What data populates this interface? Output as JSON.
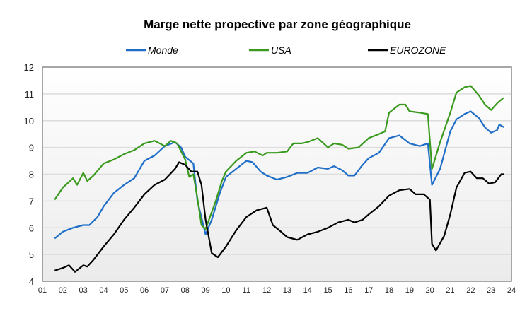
{
  "chart_data": {
    "type": "line",
    "title": "Marge nette propective par zone géographique",
    "xlabel": "",
    "ylabel": "",
    "ylim": [
      4,
      12
    ],
    "xlim": [
      2001,
      2024
    ],
    "yticks": [
      "4",
      "5",
      "6",
      "7",
      "8",
      "9",
      "10",
      "11",
      "12"
    ],
    "xticks": [
      "01",
      "02",
      "03",
      "04",
      "05",
      "06",
      "07",
      "08",
      "09",
      "10",
      "11",
      "12",
      "13",
      "14",
      "15",
      "16",
      "17",
      "18",
      "19",
      "20",
      "21",
      "22",
      "23",
      "24"
    ],
    "grid": "horizontal",
    "legend_position": "top",
    "series": [
      {
        "name": "Monde",
        "color": "#1f6fc8",
        "points": [
          [
            2001.6,
            5.6
          ],
          [
            2002,
            5.85
          ],
          [
            2002.5,
            6.0
          ],
          [
            2003,
            6.1
          ],
          [
            2003.3,
            6.1
          ],
          [
            2003.7,
            6.4
          ],
          [
            2004,
            6.8
          ],
          [
            2004.5,
            7.3
          ],
          [
            2005,
            7.6
          ],
          [
            2005.5,
            7.85
          ],
          [
            2006,
            8.5
          ],
          [
            2006.5,
            8.7
          ],
          [
            2007,
            9.05
          ],
          [
            2007.5,
            9.2
          ],
          [
            2007.8,
            9.0
          ],
          [
            2008,
            8.65
          ],
          [
            2008.4,
            8.4
          ],
          [
            2008.6,
            7.0
          ],
          [
            2009,
            5.75
          ],
          [
            2009.3,
            6.3
          ],
          [
            2009.7,
            7.3
          ],
          [
            2010,
            7.9
          ],
          [
            2010.5,
            8.2
          ],
          [
            2011,
            8.5
          ],
          [
            2011.3,
            8.45
          ],
          [
            2011.7,
            8.1
          ],
          [
            2012,
            7.95
          ],
          [
            2012.5,
            7.8
          ],
          [
            2013,
            7.9
          ],
          [
            2013.5,
            8.05
          ],
          [
            2014,
            8.05
          ],
          [
            2014.5,
            8.25
          ],
          [
            2015,
            8.2
          ],
          [
            2015.3,
            8.3
          ],
          [
            2015.7,
            8.15
          ],
          [
            2016,
            7.95
          ],
          [
            2016.3,
            7.95
          ],
          [
            2016.7,
            8.35
          ],
          [
            2017,
            8.6
          ],
          [
            2017.5,
            8.8
          ],
          [
            2018,
            9.35
          ],
          [
            2018.5,
            9.45
          ],
          [
            2019,
            9.15
          ],
          [
            2019.5,
            9.05
          ],
          [
            2019.9,
            9.15
          ],
          [
            2020.1,
            7.6
          ],
          [
            2020.5,
            8.2
          ],
          [
            2021,
            9.6
          ],
          [
            2021.3,
            10.05
          ],
          [
            2021.7,
            10.25
          ],
          [
            2022,
            10.35
          ],
          [
            2022.4,
            10.1
          ],
          [
            2022.7,
            9.75
          ],
          [
            2023,
            9.55
          ],
          [
            2023.3,
            9.65
          ],
          [
            2023.4,
            9.85
          ],
          [
            2023.65,
            9.75
          ]
        ]
      },
      {
        "name": "USA",
        "color": "#3a9a1e",
        "points": [
          [
            2001.6,
            7.05
          ],
          [
            2002,
            7.5
          ],
          [
            2002.5,
            7.85
          ],
          [
            2002.7,
            7.6
          ],
          [
            2003,
            8.05
          ],
          [
            2003.2,
            7.75
          ],
          [
            2003.5,
            7.95
          ],
          [
            2004,
            8.4
          ],
          [
            2004.5,
            8.55
          ],
          [
            2005,
            8.75
          ],
          [
            2005.5,
            8.9
          ],
          [
            2006,
            9.15
          ],
          [
            2006.5,
            9.25
          ],
          [
            2007,
            9.05
          ],
          [
            2007.3,
            9.25
          ],
          [
            2007.6,
            9.15
          ],
          [
            2008,
            8.55
          ],
          [
            2008.2,
            7.9
          ],
          [
            2008.4,
            8.0
          ],
          [
            2008.6,
            7.1
          ],
          [
            2008.8,
            6.1
          ],
          [
            2009,
            5.95
          ],
          [
            2009.5,
            7.0
          ],
          [
            2009.8,
            7.75
          ],
          [
            2010,
            8.1
          ],
          [
            2010.5,
            8.5
          ],
          [
            2011,
            8.8
          ],
          [
            2011.4,
            8.85
          ],
          [
            2011.8,
            8.7
          ],
          [
            2012,
            8.8
          ],
          [
            2012.5,
            8.8
          ],
          [
            2013,
            8.85
          ],
          [
            2013.3,
            9.15
          ],
          [
            2013.7,
            9.15
          ],
          [
            2014,
            9.2
          ],
          [
            2014.5,
            9.35
          ],
          [
            2015,
            9.0
          ],
          [
            2015.3,
            9.15
          ],
          [
            2015.7,
            9.1
          ],
          [
            2016,
            8.95
          ],
          [
            2016.5,
            9.0
          ],
          [
            2017,
            9.35
          ],
          [
            2017.5,
            9.5
          ],
          [
            2017.8,
            9.6
          ],
          [
            2018,
            10.3
          ],
          [
            2018.5,
            10.6
          ],
          [
            2018.8,
            10.6
          ],
          [
            2019,
            10.35
          ],
          [
            2019.5,
            10.3
          ],
          [
            2019.9,
            10.25
          ],
          [
            2020.1,
            8.2
          ],
          [
            2020.5,
            9.2
          ],
          [
            2021,
            10.3
          ],
          [
            2021.3,
            11.05
          ],
          [
            2021.7,
            11.25
          ],
          [
            2022,
            11.3
          ],
          [
            2022.4,
            10.95
          ],
          [
            2022.7,
            10.6
          ],
          [
            2023,
            10.4
          ],
          [
            2023.3,
            10.65
          ],
          [
            2023.6,
            10.85
          ]
        ]
      },
      {
        "name": "EUROZONE",
        "color": "#000000",
        "points": [
          [
            2001.6,
            4.4
          ],
          [
            2002,
            4.5
          ],
          [
            2002.3,
            4.6
          ],
          [
            2002.6,
            4.35
          ],
          [
            2003,
            4.6
          ],
          [
            2003.2,
            4.55
          ],
          [
            2003.5,
            4.8
          ],
          [
            2004,
            5.3
          ],
          [
            2004.5,
            5.75
          ],
          [
            2005,
            6.3
          ],
          [
            2005.5,
            6.75
          ],
          [
            2006,
            7.25
          ],
          [
            2006.5,
            7.6
          ],
          [
            2007,
            7.8
          ],
          [
            2007.5,
            8.2
          ],
          [
            2007.7,
            8.45
          ],
          [
            2008,
            8.35
          ],
          [
            2008.3,
            8.1
          ],
          [
            2008.6,
            8.1
          ],
          [
            2008.8,
            7.6
          ],
          [
            2009,
            6.3
          ],
          [
            2009.3,
            5.05
          ],
          [
            2009.6,
            4.9
          ],
          [
            2010,
            5.3
          ],
          [
            2010.5,
            5.9
          ],
          [
            2011,
            6.4
          ],
          [
            2011.5,
            6.65
          ],
          [
            2012,
            6.75
          ],
          [
            2012.3,
            6.1
          ],
          [
            2012.7,
            5.85
          ],
          [
            2013,
            5.65
          ],
          [
            2013.5,
            5.55
          ],
          [
            2014,
            5.75
          ],
          [
            2014.5,
            5.85
          ],
          [
            2015,
            6.0
          ],
          [
            2015.5,
            6.2
          ],
          [
            2016,
            6.3
          ],
          [
            2016.3,
            6.2
          ],
          [
            2016.7,
            6.3
          ],
          [
            2017,
            6.5
          ],
          [
            2017.5,
            6.8
          ],
          [
            2018,
            7.2
          ],
          [
            2018.5,
            7.4
          ],
          [
            2019,
            7.45
          ],
          [
            2019.3,
            7.25
          ],
          [
            2019.7,
            7.25
          ],
          [
            2020,
            7.05
          ],
          [
            2020.1,
            5.4
          ],
          [
            2020.3,
            5.15
          ],
          [
            2020.7,
            5.7
          ],
          [
            2021,
            6.5
          ],
          [
            2021.3,
            7.5
          ],
          [
            2021.7,
            8.05
          ],
          [
            2022,
            8.1
          ],
          [
            2022.3,
            7.85
          ],
          [
            2022.6,
            7.85
          ],
          [
            2022.9,
            7.65
          ],
          [
            2023.2,
            7.7
          ],
          [
            2023.5,
            8.0
          ],
          [
            2023.65,
            8.0
          ]
        ]
      }
    ]
  }
}
